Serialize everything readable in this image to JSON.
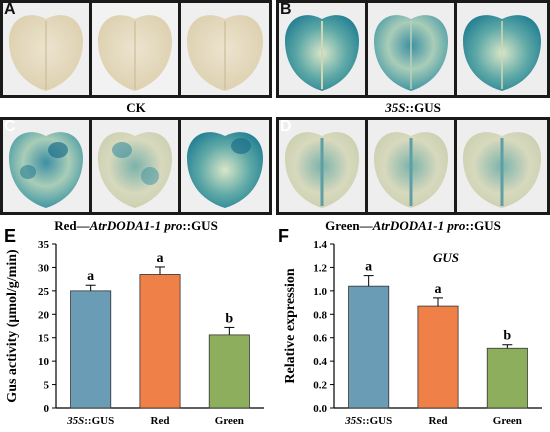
{
  "panels": {
    "A": {
      "label": "A"
    },
    "B": {
      "label": "B"
    },
    "C": {
      "label": "C"
    },
    "D": {
      "label": "D"
    },
    "E": {
      "label": "E"
    },
    "F": {
      "label": "F"
    }
  },
  "captions": {
    "ab_left": "CK",
    "ab_right_italic": "35S",
    "ab_right_rest": "::GUS",
    "cd_left_plain": "Red—",
    "cd_left_italic": "AtrDODA1-1 pro",
    "cd_left_rest": "::GUS",
    "cd_right_plain": "Green—",
    "cd_right_italic": "AtrDODA1-1 pro",
    "cd_right_rest": "::GUS"
  },
  "colors": {
    "bar_35s": "#6a9cb5",
    "bar_red": "#ef8148",
    "bar_green": "#8daf5d",
    "leaf_ck": "#e6dcc3",
    "gus_blue": "#2d8a99"
  },
  "chart_data": [
    {
      "type": "bar",
      "panel": "E",
      "categories": [
        "35S::GUS",
        "Red",
        "Green"
      ],
      "category_italic_prefix": [
        "35S",
        "",
        ""
      ],
      "category_rest": [
        "::GUS",
        "Red",
        "Green"
      ],
      "values": [
        25.0,
        28.5,
        15.6
      ],
      "errors": [
        1.2,
        1.6,
        1.6
      ],
      "significance": [
        "a",
        "a",
        "b"
      ],
      "title": "",
      "xlabel": "",
      "ylabel": "Gus activity (μmol/g/min)",
      "ylim": [
        0,
        35
      ],
      "yticks": [
        0,
        5,
        10,
        15,
        20,
        25,
        30,
        35
      ],
      "ytick_labels": [
        "0",
        "5",
        "10",
        "15",
        "20",
        "25",
        "30",
        "35"
      ]
    },
    {
      "type": "bar",
      "panel": "F",
      "categories": [
        "35S::GUS",
        "Red",
        "Green"
      ],
      "category_italic_prefix": [
        "35S",
        "",
        ""
      ],
      "category_rest": [
        "::GUS",
        "Red",
        "Green"
      ],
      "values": [
        1.04,
        0.87,
        0.51
      ],
      "errors": [
        0.09,
        0.07,
        0.03
      ],
      "significance": [
        "a",
        "a",
        "b"
      ],
      "title": "GUS",
      "xlabel": "",
      "ylabel": "Relative expression",
      "ylim": [
        0,
        1.4
      ],
      "yticks": [
        0,
        0.2,
        0.4,
        0.6,
        0.8,
        1.0,
        1.2,
        1.4
      ],
      "ytick_labels": [
        "0.0",
        "0.2",
        "0.4",
        "0.6",
        "0.8",
        "1.0",
        "1.2",
        "1.4"
      ]
    }
  ]
}
